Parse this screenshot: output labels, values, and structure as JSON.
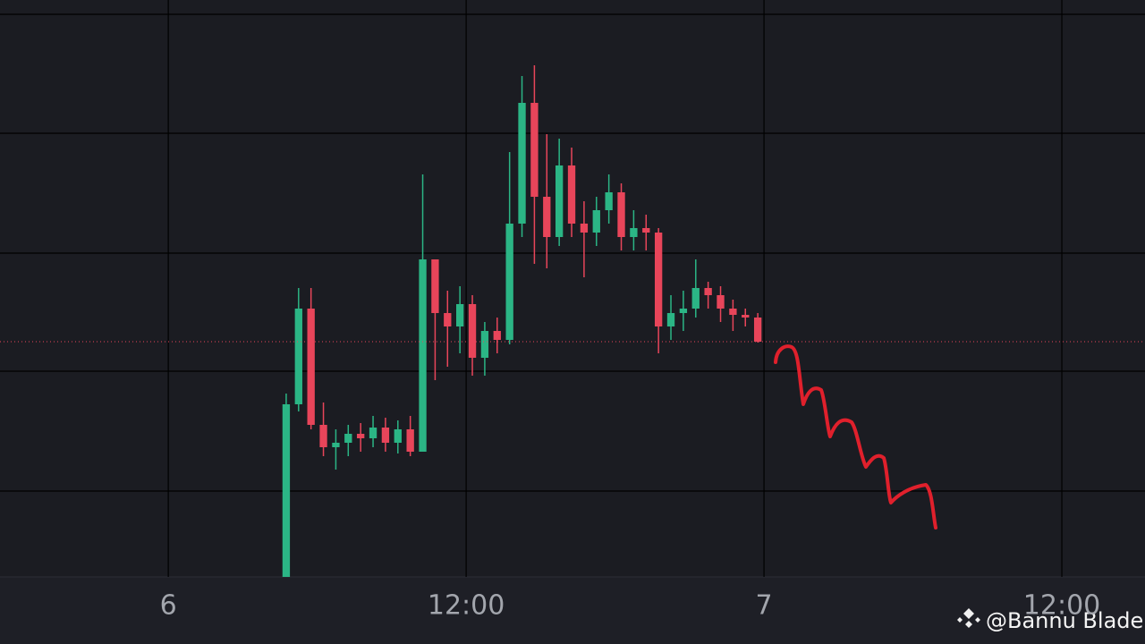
{
  "chart_data": {
    "type": "candlestick",
    "x": [
      4.75,
      5.25,
      5.75,
      6.25,
      6.75,
      7.25,
      7.75,
      8.25,
      8.75,
      9.25,
      9.75,
      10.25,
      10.75,
      11.25,
      11.75,
      12.25,
      12.75,
      13.25,
      13.75,
      14.25,
      14.75,
      15.25,
      15.75,
      16.25,
      16.75,
      17.25,
      17.75,
      18.25,
      18.75,
      19.25,
      19.75,
      20.25,
      20.75,
      21.25,
      21.75,
      22.25,
      22.75,
      23.25,
      23.75
    ],
    "open": [
      0,
      193,
      300,
      170,
      145,
      150,
      160,
      155,
      167,
      150,
      165,
      140,
      355,
      295,
      280,
      305,
      245,
      275,
      265,
      395,
      530,
      425,
      380,
      460,
      395,
      385,
      410,
      430,
      380,
      390,
      385,
      280,
      295,
      300,
      323,
      315,
      300,
      293,
      290
    ],
    "high": [
      205,
      323,
      323,
      195,
      165,
      170,
      172,
      180,
      178,
      175,
      180,
      450,
      355,
      320,
      325,
      315,
      285,
      290,
      475,
      560,
      572,
      495,
      490,
      480,
      420,
      425,
      450,
      440,
      410,
      405,
      390,
      315,
      320,
      355,
      330,
      325,
      310,
      300,
      295
    ],
    "low": [
      0,
      185,
      165,
      135,
      120,
      135,
      140,
      145,
      140,
      138,
      135,
      140,
      220,
      235,
      250,
      225,
      225,
      250,
      260,
      380,
      350,
      345,
      370,
      380,
      335,
      370,
      395,
      365,
      365,
      365,
      250,
      265,
      275,
      290,
      300,
      285,
      275,
      280,
      262
    ],
    "close": [
      193,
      300,
      170,
      145,
      150,
      160,
      155,
      167,
      150,
      165,
      140,
      355,
      295,
      280,
      305,
      245,
      275,
      265,
      395,
      530,
      425,
      380,
      460,
      395,
      385,
      410,
      430,
      380,
      390,
      385,
      280,
      295,
      300,
      323,
      315,
      300,
      293,
      290,
      263
    ],
    "up_color": "#2bb585",
    "down_color": "#e8455a",
    "xlim": [
      -6.78,
      39.35
    ],
    "xticks": [
      {
        "value": 0,
        "label": "6"
      },
      {
        "value": 12,
        "label": "12:00"
      },
      {
        "value": 24,
        "label": "7"
      },
      {
        "value": 36,
        "label": "12:00"
      }
    ],
    "ylim": [
      0,
      645
    ],
    "yticks": [
      96,
      230,
      362,
      496,
      629
    ],
    "grid": true,
    "watermark": "@Bannu Blade"
  }
}
